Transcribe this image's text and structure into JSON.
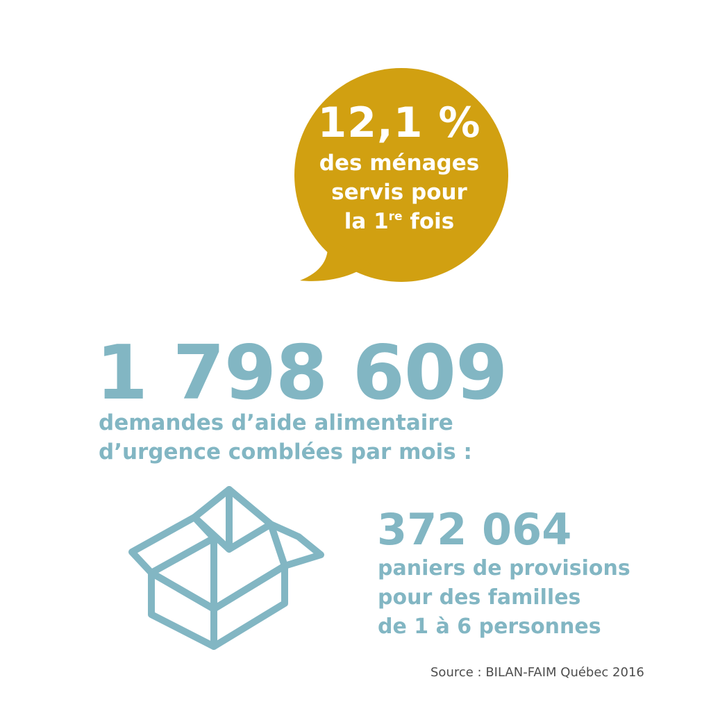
{
  "colors": {
    "bubble": "#d1a011",
    "accent_blue": "#82b6c3",
    "source_text": "#4d4d4d"
  },
  "bubble": {
    "percentage": "12,1 %",
    "line1": "des ménages",
    "line2": "servis pour",
    "line3_prefix": "la 1",
    "line3_sup": "re",
    "line3_suffix": " fois"
  },
  "requests": {
    "number": "1 798 609",
    "line1": "demandes d’aide alimentaire",
    "line2": "d’urgence comblées par mois :"
  },
  "baskets": {
    "icon": "open-box-icon",
    "number": "372 064",
    "line1": "paniers de provisions",
    "line2": "pour des familles",
    "line3": "de 1 à 6 personnes"
  },
  "source": "Source : BILAN-FAIM Québec 2016"
}
